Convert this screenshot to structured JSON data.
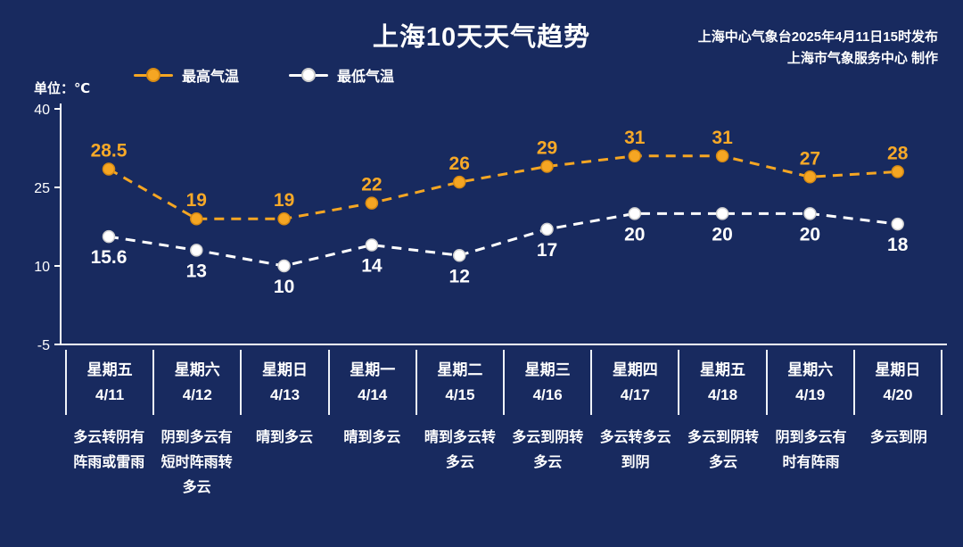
{
  "header": {
    "title": "上海10天天气趋势",
    "source_line1": "上海中心气象台2025年4月11日15时发布",
    "source_line2": "上海市气象服务中心 制作",
    "unit_label": "单位：℃"
  },
  "legend": {
    "items": [
      {
        "label": "最高气温"
      },
      {
        "label": "最低气温"
      }
    ]
  },
  "colors": {
    "background": "#182a5f",
    "axis": "#ffffff",
    "text": "#ffffff",
    "max_temp": "#f5a623",
    "min_temp": "#ffffff"
  },
  "chart_data": {
    "type": "line",
    "title": "上海10天天气趋势",
    "categories": [
      "星期五",
      "星期六",
      "星期日",
      "星期一",
      "星期二",
      "星期三",
      "星期四",
      "星期五",
      "星期六",
      "星期日"
    ],
    "dates": [
      "4/11",
      "4/12",
      "4/13",
      "4/14",
      "4/15",
      "4/16",
      "4/17",
      "4/18",
      "4/19",
      "4/20"
    ],
    "series": [
      {
        "name": "最高气温",
        "values": [
          28.5,
          19,
          19,
          22,
          26,
          29,
          31,
          31,
          27,
          28
        ],
        "color": "#f5a623",
        "marker_stroke": "#d78a12",
        "label_color": "#f7a928"
      },
      {
        "name": "最低气温",
        "values": [
          15.6,
          13,
          10,
          14,
          12,
          17,
          20,
          20,
          20,
          18
        ],
        "color": "#ffffff",
        "marker_stroke": "#cfcfcf",
        "label_color": "#ffffff"
      }
    ],
    "weather": [
      "多云转阴有阵雨或雷雨",
      "阴到多云有短时阵雨转多云",
      "晴到多云",
      "晴到多云",
      "晴到多云转多云",
      "多云到阴转多云",
      "多云转多云到阴",
      "多云到阴转多云",
      "阴到多云有时有阵雨",
      "多云到阴"
    ],
    "ylim": [
      -5,
      40
    ],
    "yticks": [
      40,
      25,
      10,
      -5
    ],
    "grid": false,
    "legend_position": "top",
    "line_style": "dashed"
  }
}
